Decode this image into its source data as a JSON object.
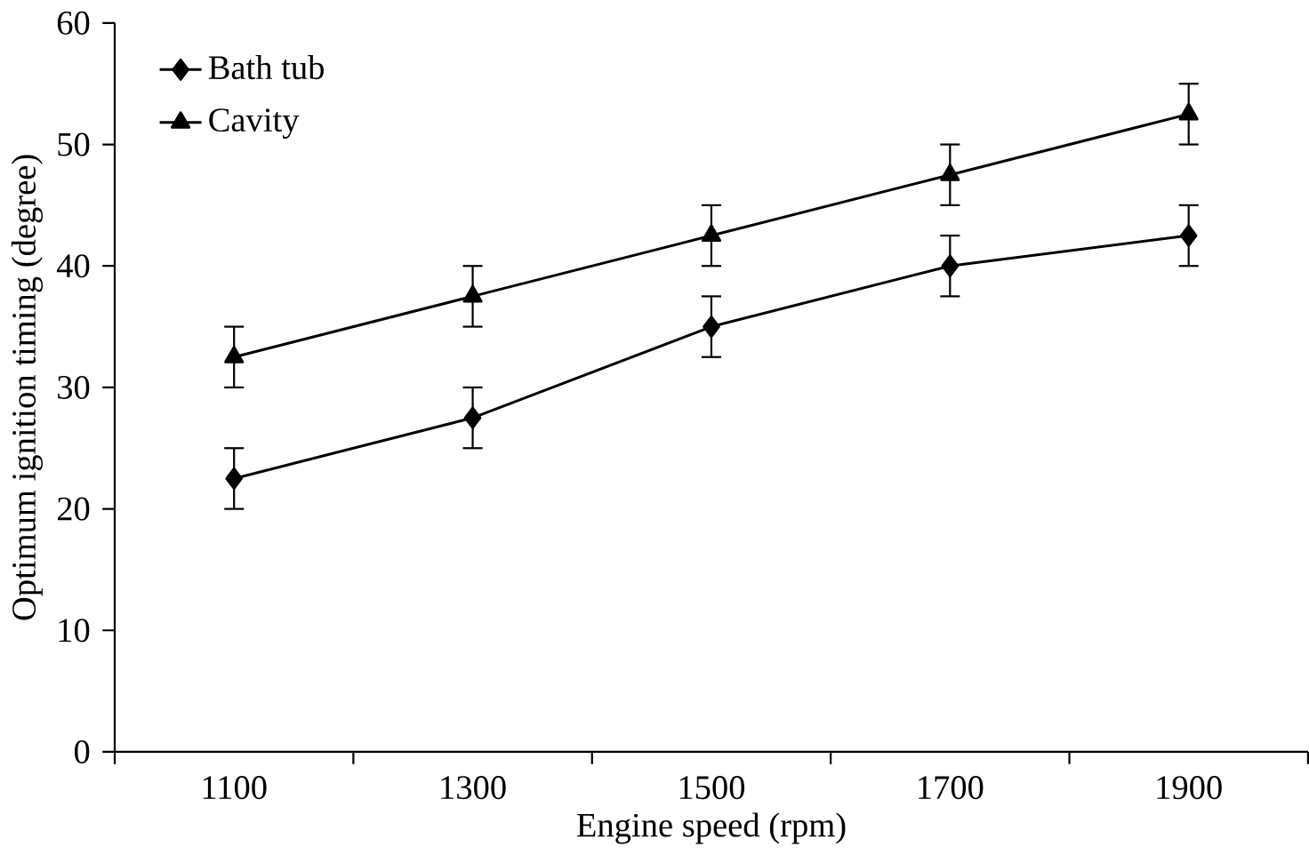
{
  "chart_data": {
    "type": "line",
    "xlabel": "Engine speed (rpm)",
    "ylabel": "Optimum ignition timing (degree)",
    "categories": [
      "1100",
      "1300",
      "1500",
      "1700",
      "1900"
    ],
    "series": [
      {
        "name": "Bath tub",
        "color": "#000000",
        "marker": "diamond",
        "values": [
          22.5,
          27.5,
          35,
          40,
          42.5
        ],
        "errors": [
          2.5,
          2.5,
          2.5,
          2.5,
          2.5
        ]
      },
      {
        "name": "Cavity",
        "color": "#000000",
        "marker": "triangle",
        "values": [
          32.5,
          37.5,
          42.5,
          47.5,
          52.5
        ],
        "errors": [
          2.5,
          2.5,
          2.5,
          2.5,
          2.5
        ]
      }
    ],
    "ylim": [
      0,
      60
    ],
    "yticks": [
      0,
      10,
      20,
      30,
      40,
      50,
      60
    ],
    "grid": false,
    "legend": "top left",
    "line_style": "solid"
  }
}
